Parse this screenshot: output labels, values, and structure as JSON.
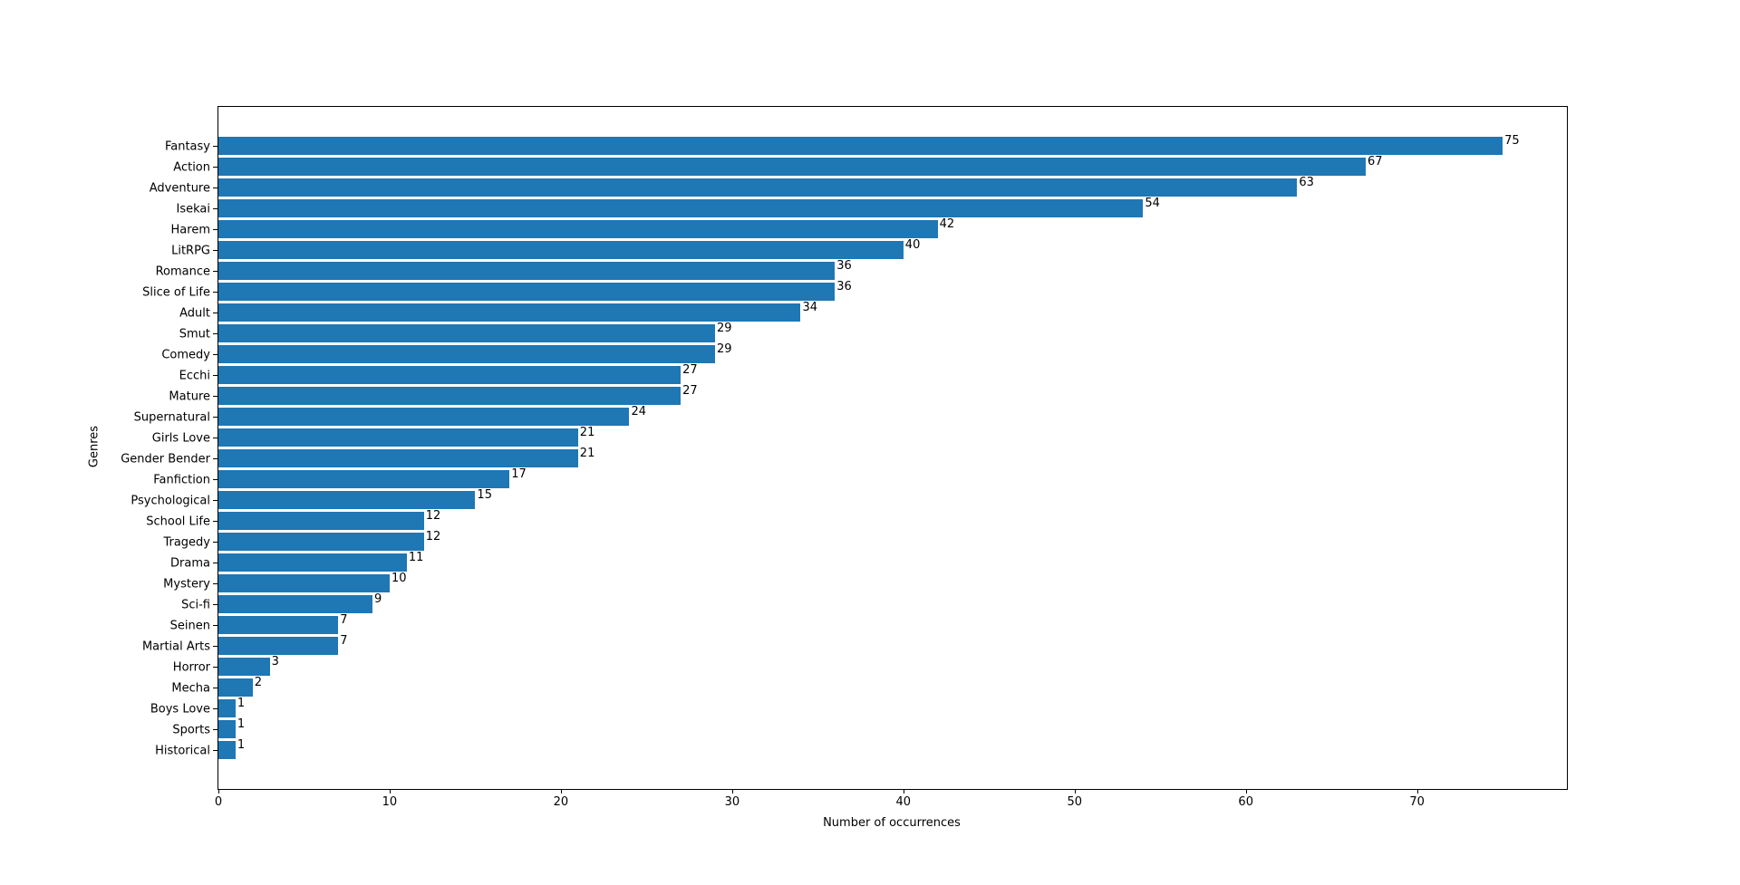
{
  "chart_data": {
    "type": "bar",
    "orientation": "horizontal",
    "title": "",
    "xlabel": "Number of occurrences",
    "ylabel": "Genres",
    "categories": [
      "Fantasy",
      "Action",
      "Adventure",
      "Isekai",
      "Harem",
      "LitRPG",
      "Romance",
      "Slice of Life",
      "Adult",
      "Smut",
      "Comedy",
      "Ecchi",
      "Mature",
      "Supernatural",
      "Girls Love",
      "Gender Bender",
      "Fanfiction",
      "Psychological",
      "School Life",
      "Tragedy",
      "Drama",
      "Mystery",
      "Sci-fi",
      "Seinen",
      "Martial Arts",
      "Horror",
      "Mecha",
      "Boys Love",
      "Sports",
      "Historical"
    ],
    "values": [
      75,
      67,
      63,
      54,
      42,
      40,
      36,
      36,
      34,
      29,
      29,
      27,
      27,
      24,
      21,
      21,
      17,
      15,
      12,
      12,
      11,
      10,
      9,
      7,
      7,
      3,
      2,
      1,
      1,
      1
    ],
    "value_labels": [
      "75",
      "67",
      "63",
      "54",
      "42",
      "40",
      "36",
      "36",
      "34",
      "29",
      "29",
      "27",
      "27",
      "24",
      "21",
      "21",
      "17",
      "15",
      "12",
      "12",
      "11",
      "10",
      "9",
      "7",
      "7",
      "3",
      "2",
      "1",
      "1",
      "1"
    ],
    "xticks": [
      0,
      10,
      20,
      30,
      40,
      50,
      60,
      70
    ],
    "xtick_labels": [
      "0",
      "10",
      "20",
      "30",
      "40",
      "50",
      "60",
      "70"
    ],
    "xlim": [
      0,
      78.75
    ],
    "grid": false,
    "legend": null,
    "bar_color": "#1f77b4",
    "text_color": "#000000",
    "background_color": "#ffffff"
  }
}
